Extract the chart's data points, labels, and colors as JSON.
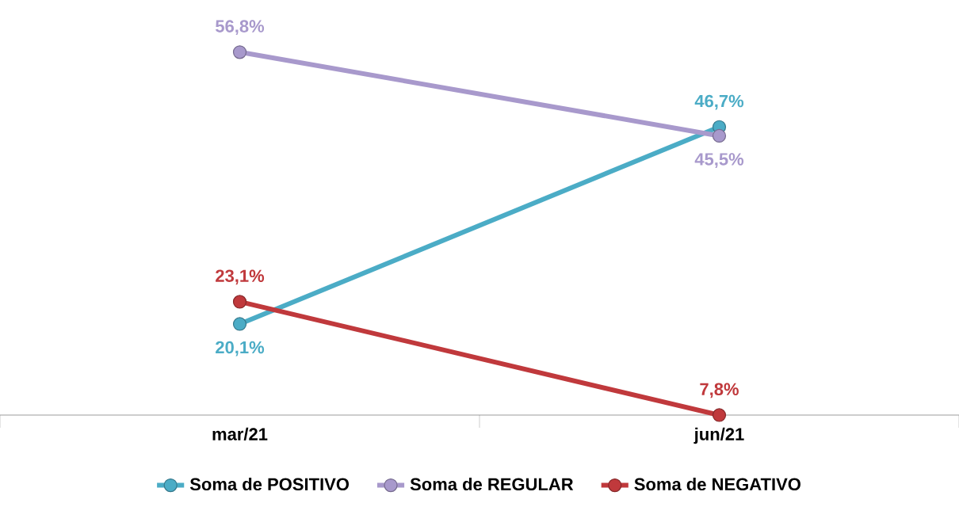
{
  "chart_data": {
    "type": "line",
    "categories": [
      "mar/21",
      "jun/21"
    ],
    "legend": "bottom",
    "marker": "circle",
    "line_style": "solid",
    "series": [
      {
        "name": "Soma de POSITIVO",
        "color": "#4bacc6",
        "values": [
          20.1,
          46.7
        ],
        "value_labels": [
          "20,1%",
          "46,7%"
        ]
      },
      {
        "name": "Soma de REGULAR",
        "color": "#a899cc",
        "values": [
          56.8,
          45.5
        ],
        "value_labels": [
          "56,8%",
          "45,5%"
        ]
      },
      {
        "name": "Soma de NEGATIVO",
        "color": "#c0393c",
        "values": [
          23.1,
          7.8
        ],
        "value_labels": [
          "23,1%",
          "7,8%"
        ]
      }
    ]
  }
}
